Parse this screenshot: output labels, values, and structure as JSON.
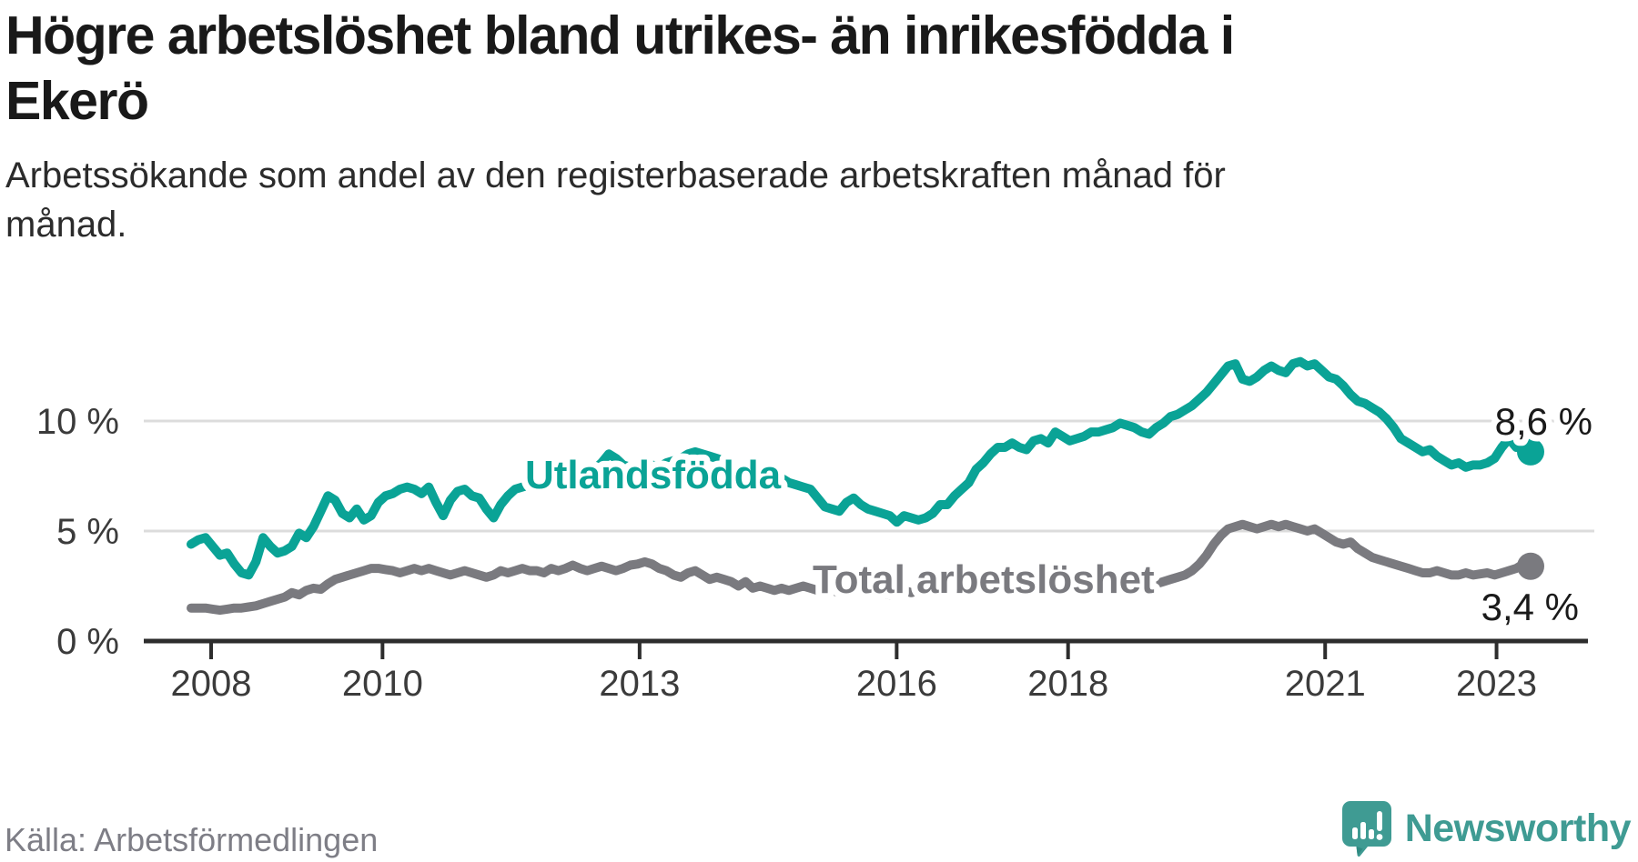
{
  "header": {
    "title_line1": "Högre arbetslöshet bland utrikes- än inrikesfödda i",
    "title_line2": "Ekerö",
    "subtitle_line1": "Arbetssökande som andel av den registerbaserade arbetskraften månad för",
    "subtitle_line2": "månad."
  },
  "footer": {
    "source": "Källa: Arbetsförmedlingen",
    "logo_text": "Newsworthy"
  },
  "colors": {
    "accent_teal": "#0aa396",
    "line_gray": "#7a7a7f",
    "logo_teal": "#3f9b93",
    "grid": "#dcdcdc",
    "axis": "#2d2d2d",
    "text_dark": "#191919"
  },
  "chart_data": {
    "type": "line",
    "title": "Högre arbetslöshet bland utrikes- än inrikesfödda i Ekerö",
    "subtitle": "Arbetssökande som andel av den registerbaserade arbetskraften månad för månad.",
    "source": "Källa: Arbetsförmedlingen",
    "unit": "%",
    "sampling": "monthly",
    "x_range_years": [
      2008,
      2023.5
    ],
    "ylim": [
      0,
      13.5
    ],
    "grid": true,
    "legend": "inline-labels",
    "y_ticks": [
      {
        "label": "10 %",
        "value": 10
      },
      {
        "label": "5 %",
        "value": 5
      },
      {
        "label": "0 %",
        "value": 0
      }
    ],
    "x_ticks": [
      {
        "label": "2008",
        "year": 2008
      },
      {
        "label": "2010",
        "year": 2010
      },
      {
        "label": "2013",
        "year": 2013
      },
      {
        "label": "2016",
        "year": 2016
      },
      {
        "label": "2018",
        "year": 2018
      },
      {
        "label": "2021",
        "year": 2021
      },
      {
        "label": "2023",
        "year": 2023
      }
    ],
    "series": [
      {
        "name": "Total arbetslöshet",
        "color": "#7a7a7f",
        "end_label": "3,4 %",
        "end_value": 3.4,
        "values": [
          1.5,
          1.5,
          1.5,
          1.45,
          1.4,
          1.45,
          1.5,
          1.5,
          1.55,
          1.6,
          1.7,
          1.8,
          1.9,
          2.0,
          2.2,
          2.1,
          2.3,
          2.4,
          2.35,
          2.6,
          2.8,
          2.9,
          3.0,
          3.1,
          3.2,
          3.3,
          3.3,
          3.25,
          3.2,
          3.1,
          3.2,
          3.3,
          3.2,
          3.3,
          3.2,
          3.1,
          3.0,
          3.1,
          3.2,
          3.1,
          3.0,
          2.9,
          3.0,
          3.2,
          3.1,
          3.2,
          3.3,
          3.2,
          3.2,
          3.1,
          3.3,
          3.2,
          3.3,
          3.45,
          3.3,
          3.2,
          3.3,
          3.4,
          3.3,
          3.2,
          3.3,
          3.45,
          3.5,
          3.6,
          3.5,
          3.3,
          3.2,
          3.0,
          2.9,
          3.1,
          3.2,
          3.0,
          2.8,
          2.9,
          2.8,
          2.7,
          2.5,
          2.7,
          2.4,
          2.5,
          2.4,
          2.3,
          2.4,
          2.3,
          2.4,
          2.5,
          2.4,
          2.3,
          2.4,
          2.3,
          2.2,
          2.3,
          2.4,
          2.3,
          2.2,
          2.3,
          2.2,
          2.1,
          2.2,
          2.3,
          2.2,
          2.3,
          2.2,
          2.3,
          2.4,
          2.3,
          2.4,
          2.5,
          2.4,
          2.5,
          2.6,
          2.5,
          2.6,
          2.7,
          2.6,
          2.7,
          2.6,
          2.7,
          2.8,
          2.7,
          2.6,
          2.7,
          2.6,
          2.7,
          2.8,
          2.7,
          2.6,
          2.7,
          2.6,
          2.7,
          2.8,
          2.7,
          2.8,
          2.7,
          2.6,
          2.7,
          2.8,
          2.9,
          3.0,
          3.2,
          3.5,
          3.9,
          4.4,
          4.8,
          5.1,
          5.2,
          5.3,
          5.2,
          5.1,
          5.2,
          5.3,
          5.2,
          5.3,
          5.2,
          5.1,
          5.0,
          5.1,
          4.9,
          4.7,
          4.5,
          4.4,
          4.5,
          4.2,
          4.0,
          3.8,
          3.7,
          3.6,
          3.5,
          3.4,
          3.3,
          3.2,
          3.1,
          3.1,
          3.2,
          3.1,
          3.0,
          3.0,
          3.1,
          3.0,
          3.05,
          3.1,
          3.0,
          3.1,
          3.2,
          3.3,
          3.5,
          3.4
        ]
      },
      {
        "name": "Utlandsfödda",
        "color": "#0aa396",
        "end_label": "8,6 %",
        "end_value": 8.6,
        "values": [
          4.4,
          4.6,
          4.7,
          4.3,
          3.9,
          4.0,
          3.5,
          3.1,
          3.0,
          3.6,
          4.7,
          4.3,
          4.0,
          4.1,
          4.3,
          4.9,
          4.7,
          5.2,
          5.9,
          6.6,
          6.4,
          5.8,
          5.6,
          6.0,
          5.5,
          5.7,
          6.3,
          6.6,
          6.7,
          6.9,
          7.0,
          6.9,
          6.7,
          7.0,
          6.3,
          5.7,
          6.4,
          6.8,
          6.9,
          6.6,
          6.5,
          6.0,
          5.6,
          6.2,
          6.6,
          6.9,
          7.0,
          7.1,
          7.0,
          7.2,
          7.1,
          7.3,
          7.2,
          7.4,
          7.5,
          7.6,
          7.8,
          8.1,
          8.5,
          8.3,
          8.0,
          7.9,
          7.8,
          7.9,
          8.0,
          7.9,
          8.1,
          8.2,
          8.3,
          8.5,
          8.6,
          8.5,
          8.4,
          8.3,
          8.2,
          8.0,
          7.8,
          7.7,
          7.6,
          7.5,
          7.4,
          7.5,
          7.4,
          7.2,
          7.1,
          7.0,
          6.9,
          6.5,
          6.1,
          6.0,
          5.9,
          6.3,
          6.5,
          6.2,
          6.0,
          5.9,
          5.8,
          5.7,
          5.4,
          5.7,
          5.6,
          5.5,
          5.6,
          5.8,
          6.2,
          6.2,
          6.6,
          6.9,
          7.2,
          7.8,
          8.1,
          8.5,
          8.8,
          8.8,
          9.0,
          8.8,
          8.7,
          9.1,
          9.2,
          9.0,
          9.5,
          9.3,
          9.1,
          9.2,
          9.3,
          9.5,
          9.5,
          9.6,
          9.7,
          9.9,
          9.8,
          9.7,
          9.5,
          9.4,
          9.7,
          9.9,
          10.2,
          10.3,
          10.5,
          10.7,
          11.0,
          11.3,
          11.7,
          12.1,
          12.5,
          12.6,
          11.9,
          11.8,
          12.0,
          12.3,
          12.5,
          12.3,
          12.2,
          12.6,
          12.7,
          12.5,
          12.6,
          12.3,
          12.0,
          11.9,
          11.6,
          11.2,
          10.9,
          10.8,
          10.6,
          10.4,
          10.1,
          9.7,
          9.2,
          9.0,
          8.8,
          8.6,
          8.7,
          8.4,
          8.2,
          8.0,
          8.1,
          7.9,
          8.0,
          8.0,
          8.1,
          8.3,
          8.8,
          9.2,
          8.8,
          9.1,
          8.6
        ]
      }
    ]
  }
}
